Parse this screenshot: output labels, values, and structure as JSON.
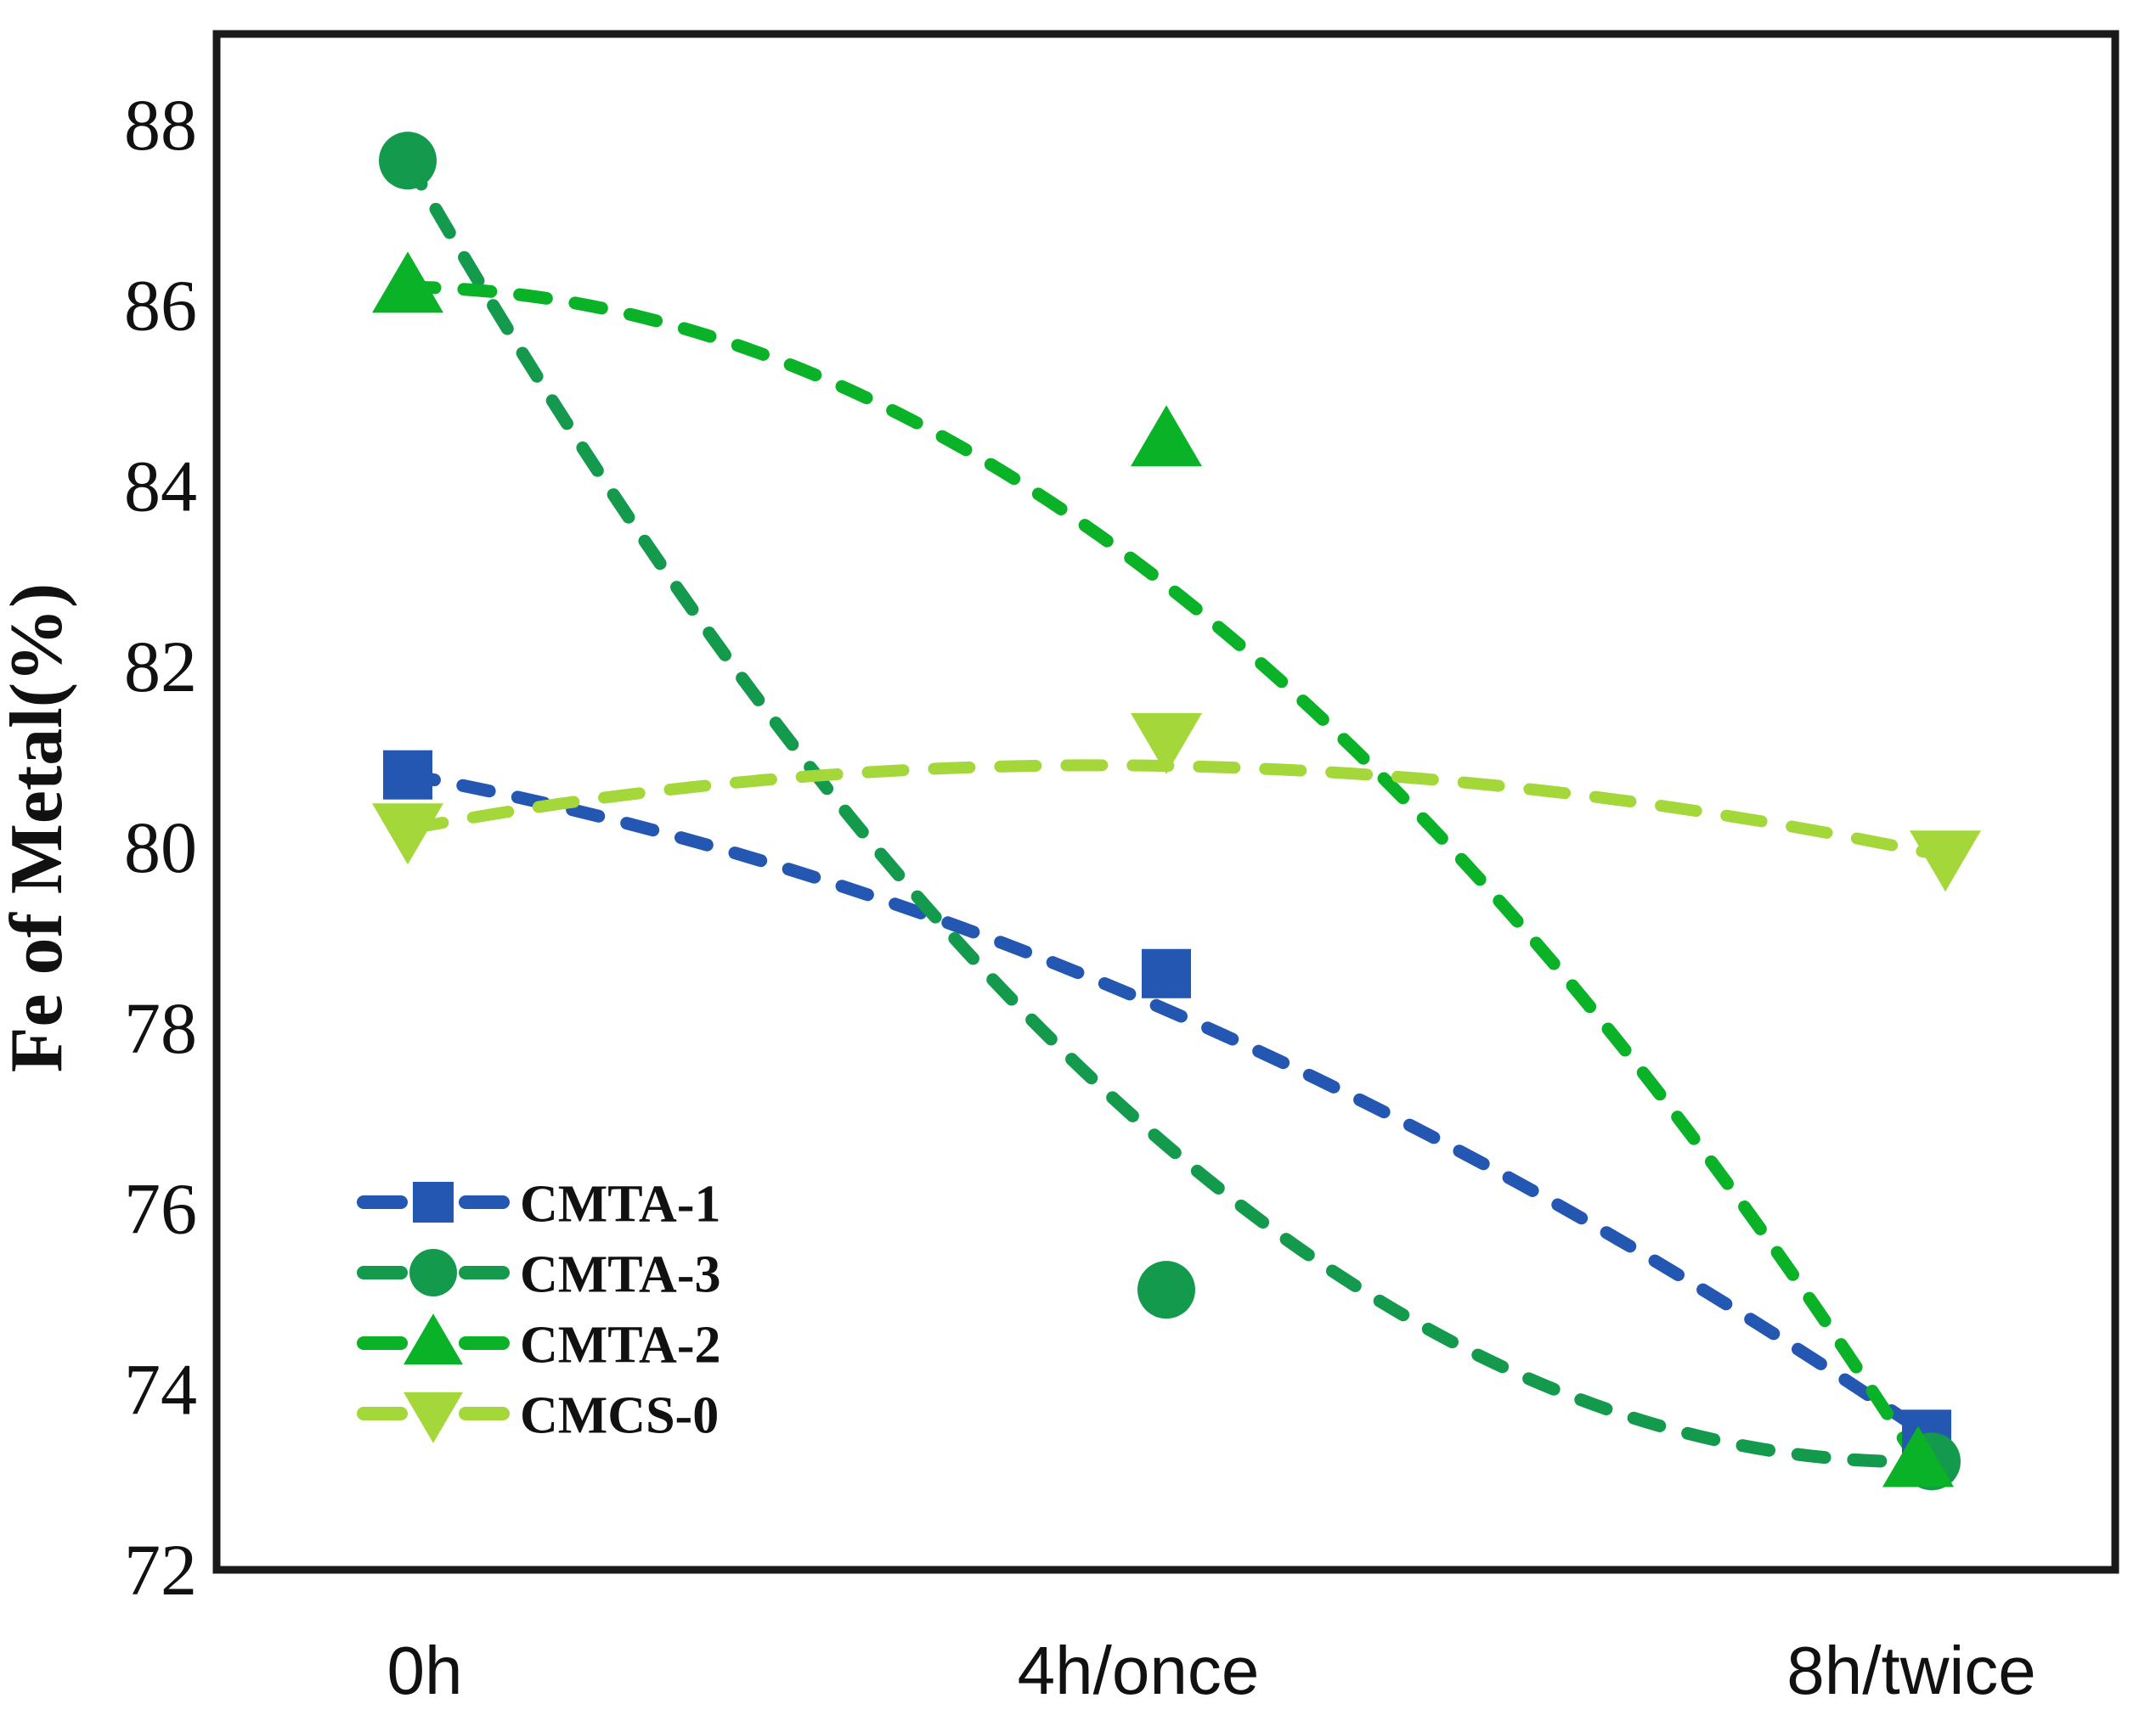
{
  "chart_data": {
    "type": "scatter",
    "title": "",
    "xlabel": "",
    "ylabel": "Fe of Metal(%)",
    "categories": [
      "0h",
      "4h/once",
      "8h/twice"
    ],
    "y_ticks": [
      88,
      86,
      84,
      82,
      80,
      78,
      76,
      74,
      72
    ],
    "ylim": [
      72,
      89
    ],
    "grid": false,
    "legend_position": "lower-left",
    "line_style": "dashed",
    "axis_color": "#1a1a1a",
    "series": [
      {
        "name": "CMTA-1",
        "marker": "square",
        "color": "#2457b2",
        "values": [
          80.8,
          78.6,
          73.5
        ],
        "trend_mid": 78.2
      },
      {
        "name": "CMTA-3",
        "marker": "circle",
        "color": "#149a4d",
        "values": [
          87.6,
          75.1,
          73.2
        ],
        "trend_mid": 76.7
      },
      {
        "name": "CMTA-2",
        "marker": "triangle-up",
        "color": "#0ab228",
        "values": [
          86.2,
          84.5,
          73.2
        ],
        "trend_mid": 82.9
      },
      {
        "name": "CMCS-0",
        "marker": "triangle-down",
        "color": "#a4d739",
        "values": [
          80.2,
          81.2,
          79.9
        ],
        "trend_mid": 80.9
      }
    ]
  }
}
